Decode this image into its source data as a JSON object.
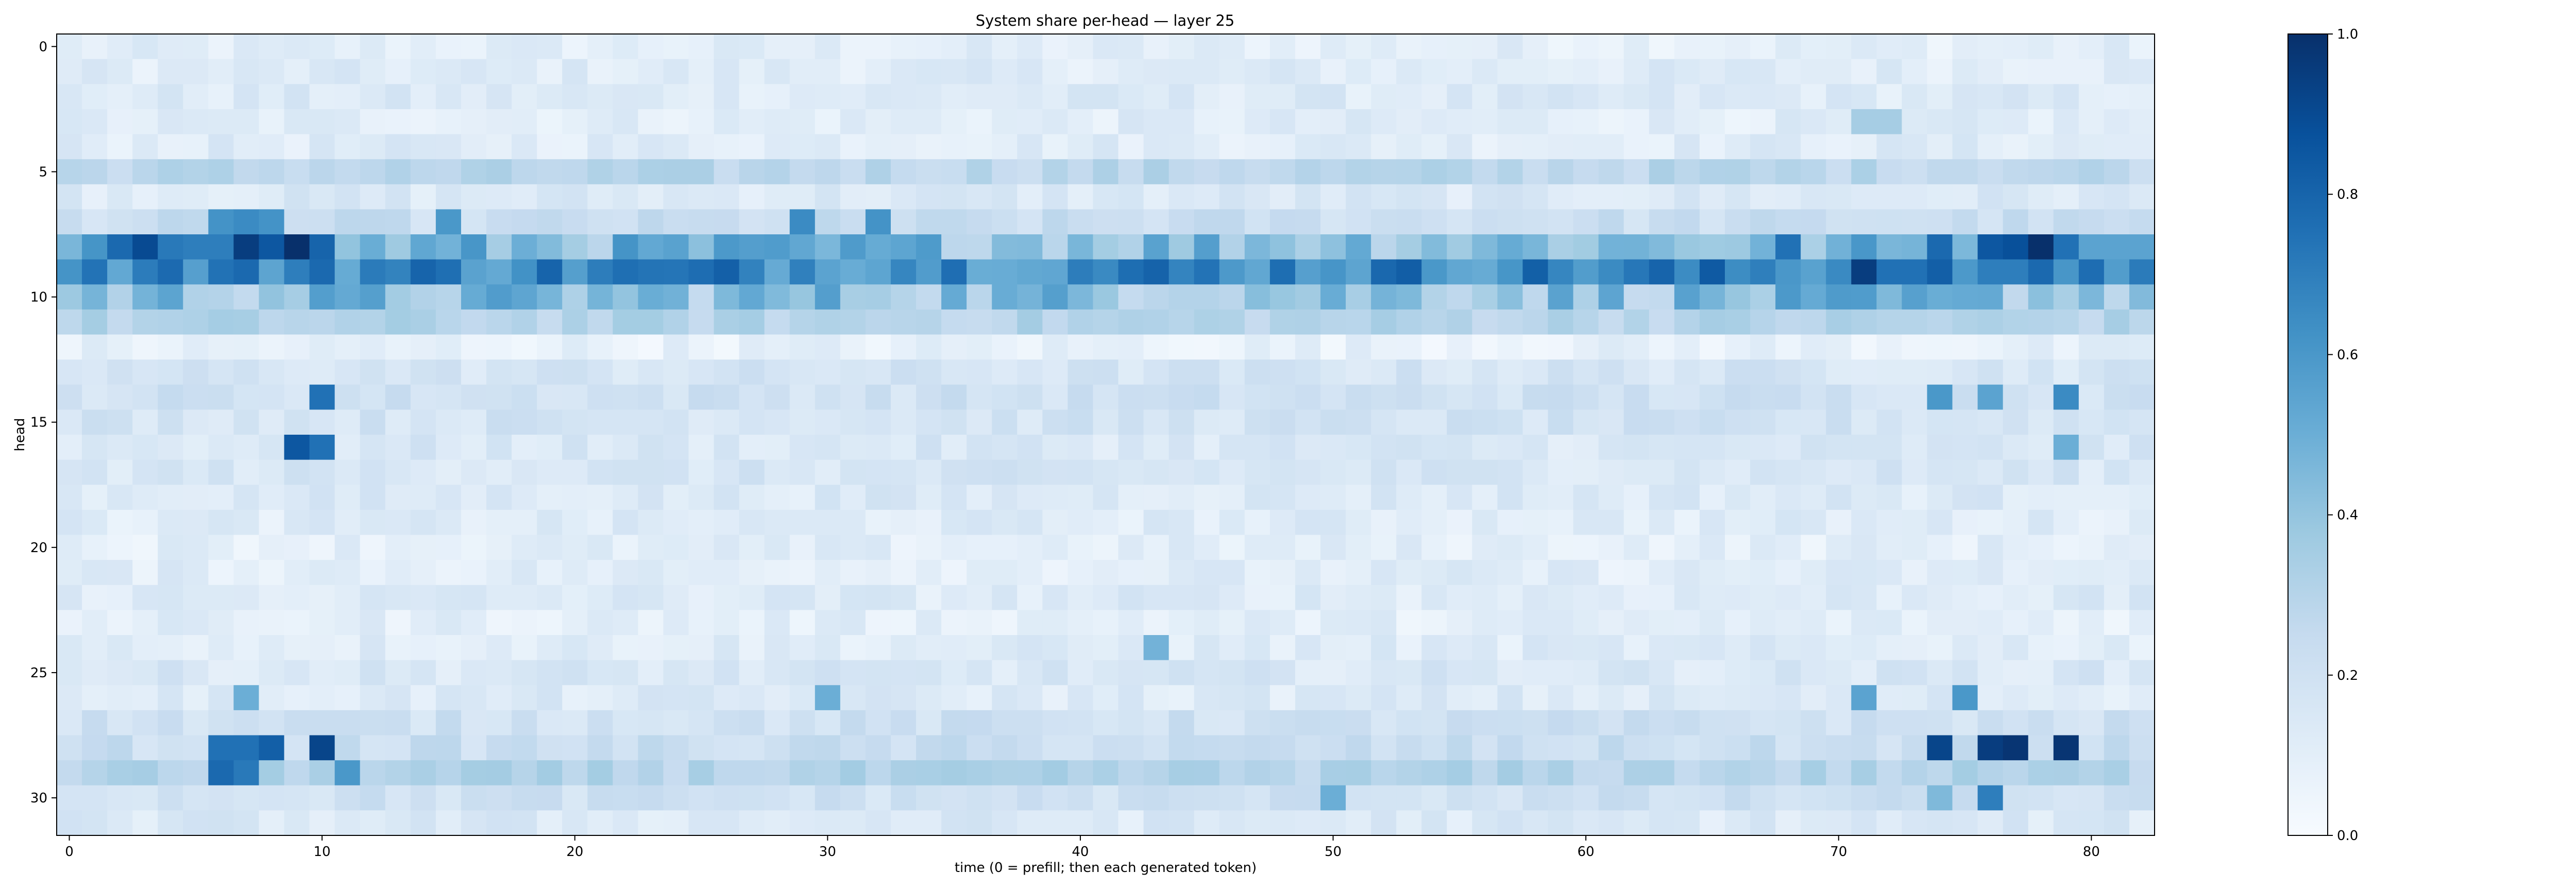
{
  "chart_data": {
    "type": "heatmap",
    "title": "System share per-head — layer 25",
    "xlabel": "time (0 = prefill; then each generated token)",
    "ylabel": "head",
    "x_count": 83,
    "y_count": 32,
    "xlim": [
      0,
      82
    ],
    "ylim": [
      0,
      31
    ],
    "xticks": [
      0,
      10,
      20,
      30,
      40,
      50,
      60,
      70,
      80
    ],
    "yticks": [
      0,
      5,
      10,
      15,
      20,
      25,
      30
    ],
    "colormap": "Blues",
    "color_low": "#f7fbff",
    "color_high": "#08306b",
    "colorbar": {
      "min": 0.0,
      "max": 1.0,
      "ticks": [
        "0.0",
        "0.2",
        "0.4",
        "0.6",
        "0.8",
        "1.0"
      ]
    },
    "row_baseline": [
      0.1,
      0.12,
      0.13,
      0.11,
      0.12,
      0.28,
      0.14,
      0.22,
      0.45,
      0.68,
      0.42,
      0.3,
      0.08,
      0.17,
      0.2,
      0.18,
      0.15,
      0.16,
      0.14,
      0.12,
      0.1,
      0.11,
      0.13,
      0.1,
      0.12,
      0.15,
      0.13,
      0.2,
      0.22,
      0.3,
      0.2,
      0.14
    ],
    "hot_cells": [
      [
        8,
        3,
        0.9
      ],
      [
        8,
        7,
        0.95
      ],
      [
        8,
        9,
        1.0
      ],
      [
        8,
        8,
        0.85
      ],
      [
        8,
        10,
        0.8
      ],
      [
        8,
        6,
        0.7
      ],
      [
        8,
        4,
        0.72
      ],
      [
        8,
        5,
        0.7
      ],
      [
        8,
        2,
        0.78
      ],
      [
        8,
        68,
        0.75
      ],
      [
        8,
        74,
        0.78
      ],
      [
        8,
        76,
        0.85
      ],
      [
        8,
        77,
        0.88
      ],
      [
        8,
        78,
        1.0
      ],
      [
        8,
        79,
        0.75
      ],
      [
        8,
        80,
        0.55
      ],
      [
        8,
        81,
        0.55
      ],
      [
        8,
        82,
        0.55
      ],
      [
        9,
        71,
        0.95
      ],
      [
        9,
        72,
        0.75
      ],
      [
        9,
        73,
        0.75
      ],
      [
        9,
        77,
        0.7
      ],
      [
        9,
        78,
        0.78
      ],
      [
        9,
        7,
        0.78
      ],
      [
        9,
        9,
        0.7
      ],
      [
        9,
        10,
        0.78
      ],
      [
        7,
        7,
        0.65
      ],
      [
        7,
        8,
        0.62
      ],
      [
        7,
        6,
        0.62
      ],
      [
        7,
        29,
        0.65
      ],
      [
        7,
        32,
        0.62
      ],
      [
        7,
        15,
        0.6
      ],
      [
        14,
        10,
        0.75
      ],
      [
        14,
        74,
        0.6
      ],
      [
        14,
        76,
        0.55
      ],
      [
        14,
        79,
        0.65
      ],
      [
        16,
        9,
        0.85
      ],
      [
        16,
        10,
        0.75
      ],
      [
        16,
        79,
        0.5
      ],
      [
        28,
        10,
        0.92
      ],
      [
        28,
        6,
        0.75
      ],
      [
        28,
        7,
        0.75
      ],
      [
        28,
        8,
        0.82
      ],
      [
        28,
        74,
        0.92
      ],
      [
        28,
        76,
        0.95
      ],
      [
        28,
        77,
        0.98
      ],
      [
        28,
        79,
        0.98
      ],
      [
        29,
        6,
        0.78
      ],
      [
        29,
        7,
        0.72
      ],
      [
        29,
        11,
        0.6
      ],
      [
        30,
        76,
        0.7
      ],
      [
        30,
        74,
        0.45
      ],
      [
        30,
        50,
        0.5
      ],
      [
        26,
        7,
        0.5
      ],
      [
        26,
        75,
        0.6
      ],
      [
        26,
        71,
        0.55
      ],
      [
        26,
        30,
        0.5
      ],
      [
        24,
        43,
        0.48
      ],
      [
        3,
        71,
        0.35
      ],
      [
        3,
        72,
        0.35
      ]
    ]
  }
}
